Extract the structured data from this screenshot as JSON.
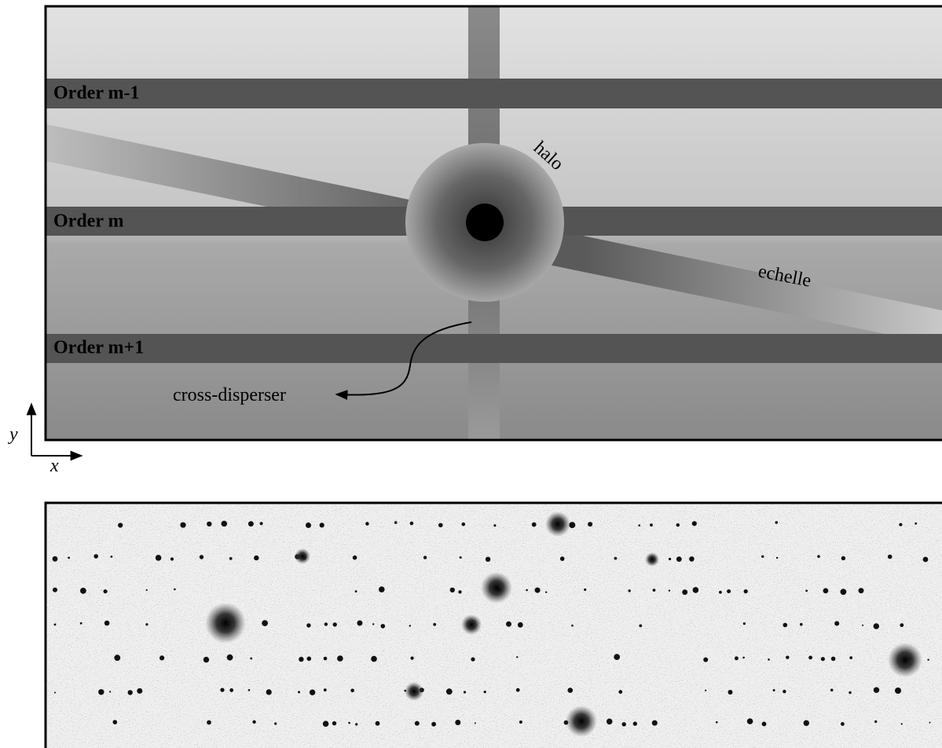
{
  "panel_top": {
    "orders": [
      "Order m-1",
      "Order m",
      "Order m+1"
    ],
    "halo": "halo",
    "echelle": "echelle",
    "cross_disperser": "cross-disperser"
  },
  "axes": {
    "y": "y",
    "x": "x"
  }
}
